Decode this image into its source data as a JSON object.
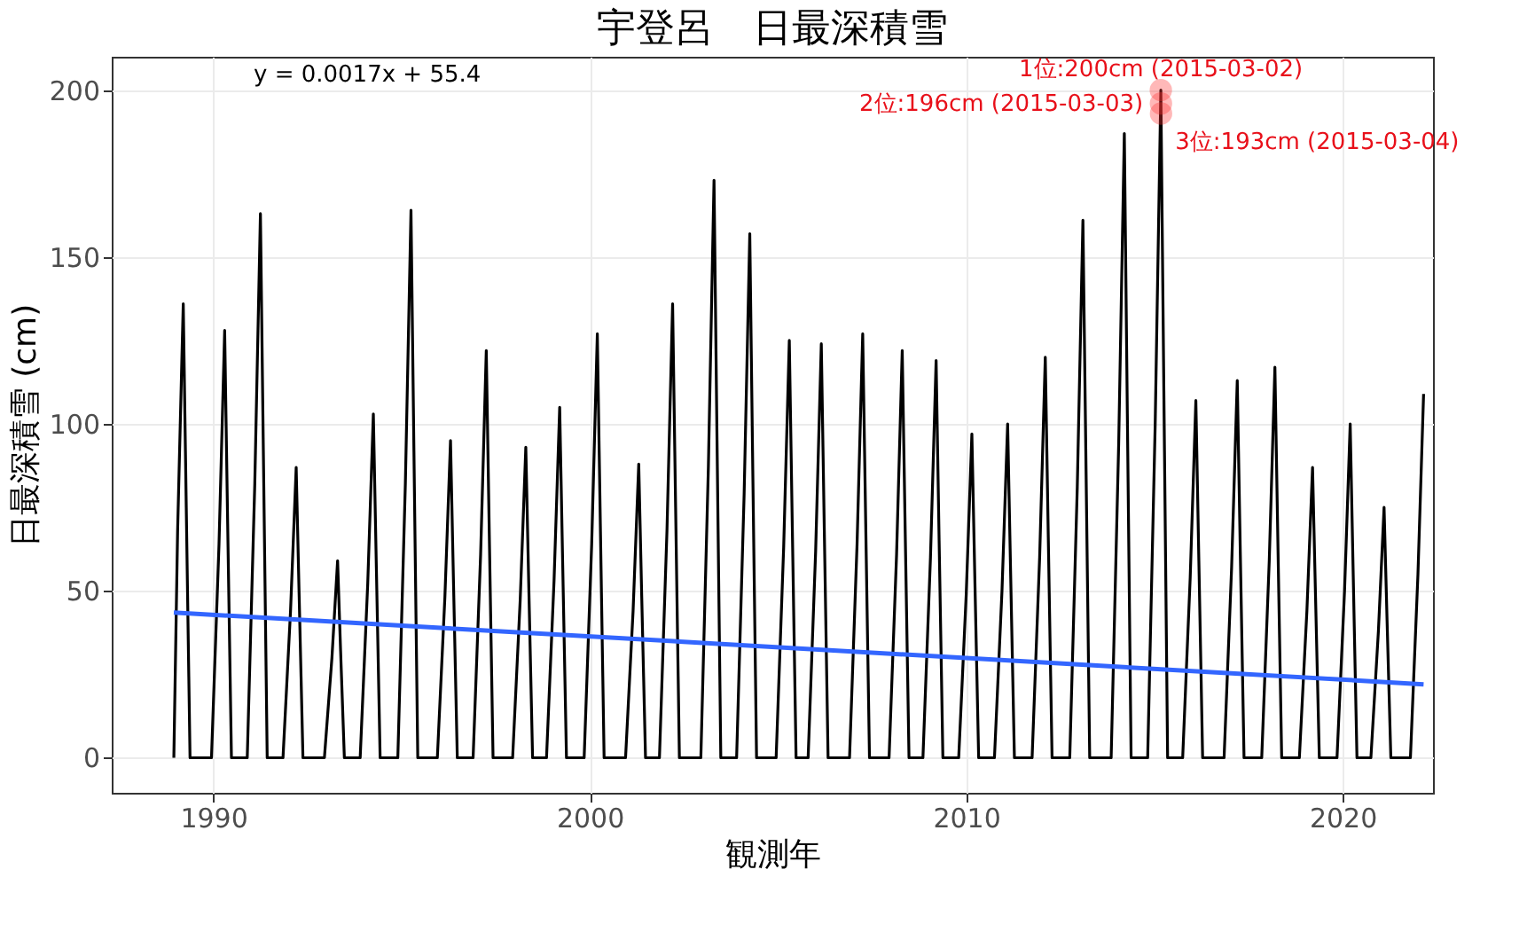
{
  "chart_data": {
    "type": "line",
    "title": "宇登呂　日最深積雪",
    "xlabel": "観測年",
    "ylabel": "日最深積雪 (cm)",
    "xlim": [
      1987.3,
      2022.4
    ],
    "xticks": [
      1990,
      2000,
      2010,
      2020
    ],
    "ylim": [
      -10.5,
      210
    ],
    "yticks": [
      0,
      50,
      100,
      150,
      200
    ],
    "grid": true,
    "marker": "none",
    "line_style": "solid",
    "series": [
      {
        "color": "#000000",
        "x": [
          1988.95,
          1989.05,
          1989.2,
          1989.28,
          1989.38,
          1989.95,
          1990.15,
          1990.3,
          1990.38,
          1990.48,
          1990.9,
          1991.1,
          1991.25,
          1991.33,
          1991.43,
          1991.85,
          1992.05,
          1992.2,
          1992.28,
          1992.38,
          1992.95,
          1993.15,
          1993.3,
          1993.38,
          1993.48,
          1993.9,
          1994.1,
          1994.25,
          1994.33,
          1994.43,
          1994.9,
          1995.1,
          1995.25,
          1995.33,
          1995.43,
          1995.95,
          1996.15,
          1996.3,
          1996.38,
          1996.48,
          1996.9,
          1997.1,
          1997.25,
          1997.33,
          1997.43,
          1997.95,
          1998.15,
          1998.3,
          1998.38,
          1998.48,
          1998.85,
          1999.05,
          1999.2,
          1999.28,
          1999.38,
          1999.85,
          2000.05,
          2000.2,
          2000.28,
          2000.38,
          2000.95,
          2001.15,
          2001.3,
          2001.38,
          2001.48,
          2001.85,
          2002.05,
          2002.2,
          2002.28,
          2002.38,
          2002.95,
          2003.15,
          2003.3,
          2003.38,
          2003.48,
          2003.9,
          2004.1,
          2004.25,
          2004.33,
          2004.43,
          2004.95,
          2005.15,
          2005.3,
          2005.38,
          2005.48,
          2005.8,
          2006.0,
          2006.15,
          2006.23,
          2006.33,
          2006.9,
          2007.1,
          2007.25,
          2007.33,
          2007.43,
          2007.95,
          2008.15,
          2008.3,
          2008.38,
          2008.48,
          2008.85,
          2009.05,
          2009.2,
          2009.28,
          2009.38,
          2009.8,
          2010.0,
          2010.15,
          2010.23,
          2010.33,
          2010.75,
          2010.95,
          2011.1,
          2011.18,
          2011.28,
          2011.75,
          2011.95,
          2012.1,
          2012.18,
          2012.28,
          2012.75,
          2012.95,
          2013.1,
          2013.18,
          2013.28,
          2013.85,
          2014.05,
          2014.2,
          2014.28,
          2014.38,
          2014.82,
          2015.02,
          2015.17,
          2015.25,
          2015.35,
          2015.75,
          2015.95,
          2016.1,
          2016.18,
          2016.28,
          2016.85,
          2017.05,
          2017.2,
          2017.28,
          2017.38,
          2017.85,
          2018.05,
          2018.2,
          2018.28,
          2018.38,
          2018.85,
          2019.05,
          2019.2,
          2019.28,
          2019.38,
          2019.85,
          2020.05,
          2020.2,
          2020.28,
          2020.38,
          2020.75,
          2020.95,
          2021.1,
          2021.18,
          2021.28,
          2021.8,
          2022.0,
          2022.15
        ],
        "values": [
          0,
          68,
          136,
          75,
          0,
          0,
          64,
          128,
          70,
          0,
          0,
          82,
          163,
          90,
          0,
          0,
          44,
          87,
          48,
          0,
          0,
          30,
          59,
          32,
          0,
          0,
          52,
          103,
          57,
          0,
          0,
          82,
          164,
          90,
          0,
          0,
          48,
          95,
          52,
          0,
          0,
          61,
          122,
          67,
          0,
          0,
          47,
          93,
          51,
          0,
          0,
          53,
          105,
          58,
          0,
          0,
          64,
          127,
          70,
          0,
          0,
          44,
          88,
          48,
          0,
          0,
          68,
          136,
          75,
          0,
          0,
          87,
          173,
          95,
          0,
          0,
          79,
          157,
          86,
          0,
          0,
          63,
          125,
          69,
          0,
          0,
          62,
          124,
          68,
          0,
          0,
          64,
          127,
          70,
          0,
          0,
          61,
          122,
          67,
          0,
          0,
          60,
          119,
          65,
          0,
          0,
          49,
          97,
          53,
          0,
          0,
          50,
          100,
          55,
          0,
          0,
          60,
          120,
          66,
          0,
          0,
          81,
          161,
          89,
          0,
          0,
          94,
          187,
          103,
          0,
          0,
          100,
          200,
          110,
          0,
          0,
          54,
          107,
          59,
          0,
          0,
          57,
          113,
          62,
          0,
          0,
          59,
          117,
          64,
          0,
          0,
          44,
          87,
          48,
          0,
          0,
          50,
          100,
          55,
          0,
          0,
          38,
          75,
          41,
          0,
          0,
          55,
          109
        ]
      },
      {
        "type": "line",
        "color": "#3366ff",
        "x": [
          1988.95,
          2022.15
        ],
        "values": [
          43.5,
          22
        ]
      }
    ],
    "annotations": [
      "y = 0.0017x + 55.4",
      {
        "text": "1位:200cm (2015-03-02)",
        "x": 2015.17,
        "y": 200
      },
      {
        "text": "2位:196cm (2015-03-03)",
        "x": 2015.173,
        "y": 196
      },
      {
        "text": "3位:193cm (2015-03-04)",
        "x": 2015.175,
        "y": 193
      }
    ]
  }
}
